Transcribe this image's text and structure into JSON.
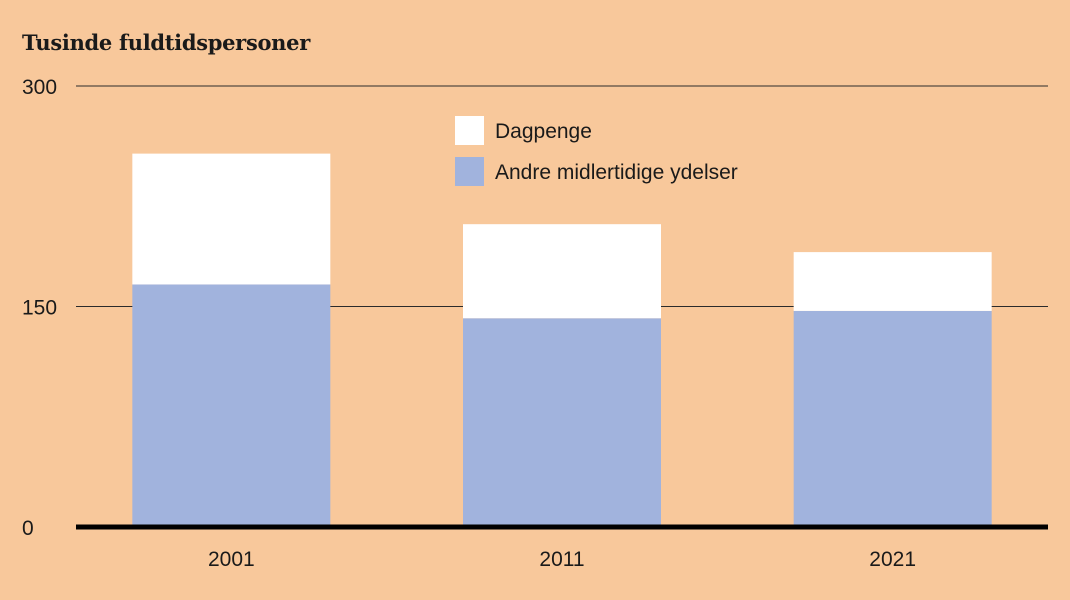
{
  "chart_data": {
    "type": "bar",
    "stacked": true,
    "title": "",
    "ylabel": "Tusinde fuldtidspersoner",
    "xlabel": "",
    "ylim": [
      0,
      300
    ],
    "yticks": [
      0,
      150,
      300
    ],
    "categories": [
      "2001",
      "2011",
      "2021"
    ],
    "series": [
      {
        "name": "Andre midlertidige ydelser",
        "color": "#a1b3dd",
        "values": [
          165,
          142,
          147
        ]
      },
      {
        "name": "Dagpenge",
        "color": "#ffffff",
        "values": [
          89,
          64,
          40
        ]
      }
    ],
    "legend_position": "top-center",
    "grid": true
  }
}
